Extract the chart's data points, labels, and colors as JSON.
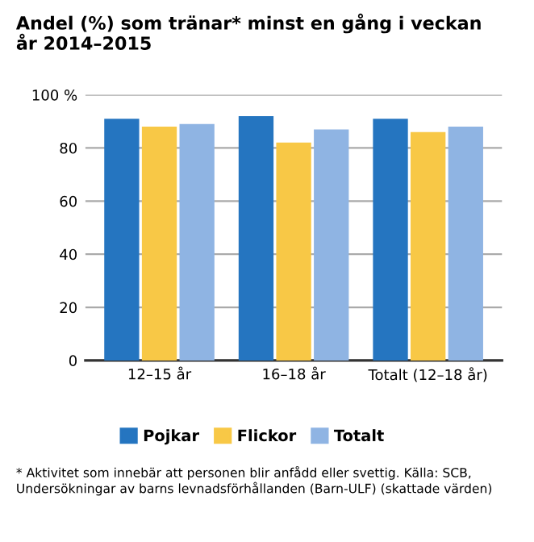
{
  "chart_data": {
    "type": "bar",
    "title": "Andel (%) som tränar* minst en gång i veckan\når 2014–2015",
    "categories": [
      "12–15 år",
      "16–18 år",
      "Totalt (12–18 år)"
    ],
    "series": [
      {
        "name": "Pojkar",
        "color": "#2575c0",
        "values": [
          91,
          92,
          91
        ]
      },
      {
        "name": "Flickor",
        "color": "#f8c846",
        "values": [
          88,
          82,
          86
        ]
      },
      {
        "name": "Totalt",
        "color": "#8fb4e3",
        "values": [
          89,
          87,
          88
        ]
      }
    ],
    "ylim": [
      0,
      100
    ],
    "yticks": [
      0,
      20,
      40,
      60,
      80,
      {
        "value": 100,
        "label": "100 %"
      }
    ],
    "grid": "y",
    "legend": "bottom",
    "annotations": [
      "* Aktivitet som innebär att personen blir anfådd eller svettig. Källa: SCB, Undersökningar av barns levnadsförhållanden (Barn-ULF) (skattade värden)"
    ]
  }
}
